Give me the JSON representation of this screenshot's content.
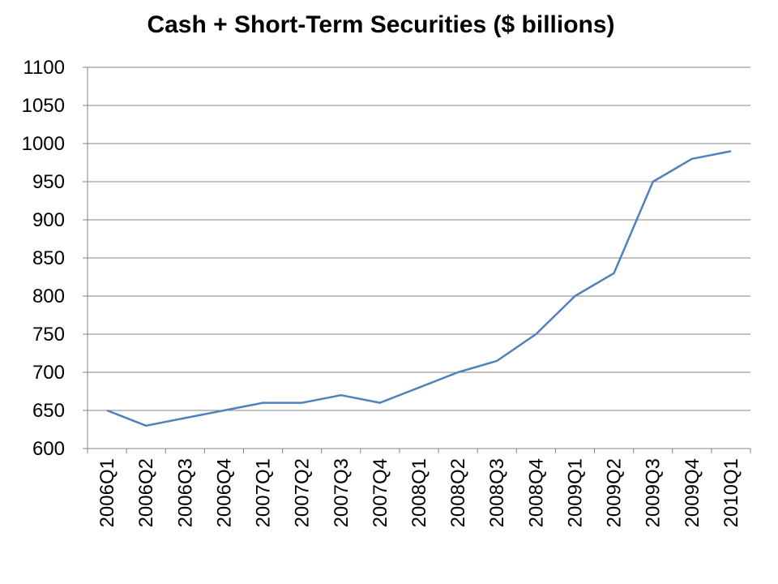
{
  "chart_data": {
    "type": "line",
    "title": "Cash + Short-Term Securities ($ billions)",
    "xlabel": "",
    "ylabel": "",
    "ylim": [
      600,
      1100
    ],
    "yticks": [
      600,
      650,
      700,
      750,
      800,
      850,
      900,
      950,
      1000,
      1050,
      1100
    ],
    "grid": true,
    "categories": [
      "2006Q1",
      "2006Q2",
      "2006Q3",
      "2006Q4",
      "2007Q1",
      "2007Q2",
      "2007Q3",
      "2007Q4",
      "2008Q1",
      "2008Q2",
      "2008Q3",
      "2008Q4",
      "2009Q1",
      "2009Q2",
      "2009Q3",
      "2009Q4",
      "2010Q1"
    ],
    "series": [
      {
        "name": "Cash + Short-Term Securities",
        "color": "#4F81BD",
        "values": [
          650,
          630,
          640,
          650,
          660,
          660,
          670,
          660,
          680,
          700,
          715,
          750,
          800,
          830,
          950,
          980,
          990
        ]
      }
    ]
  }
}
